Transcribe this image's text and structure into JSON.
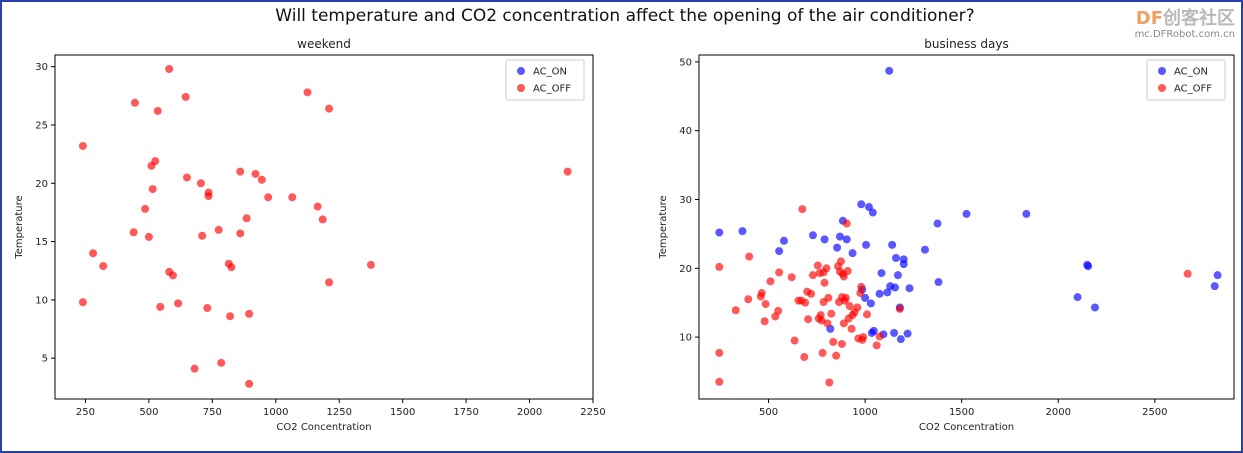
{
  "suptitle": "Will temperature and CO2 concentration affect the opening of the air conditioner?",
  "watermark": {
    "brand": "DF",
    "cn": "创客社区",
    "url": "mc.DFRobot.com.cn"
  },
  "colors": {
    "on": "#0000ff",
    "off": "#ff0000",
    "frame": "#2b3fa8"
  },
  "chart_data": [
    {
      "type": "scatter",
      "title": "weekend",
      "xlabel": "CO2 Concentration",
      "ylabel": "Temperature",
      "xlim": [
        130,
        2250
      ],
      "ylim": [
        1.5,
        31
      ],
      "xticks": [
        250,
        500,
        750,
        1000,
        1250,
        1500,
        1750,
        2000,
        2250
      ],
      "yticks": [
        5,
        10,
        15,
        20,
        25,
        30
      ],
      "legend": "top-right",
      "series": [
        {
          "name": "AC_ON",
          "color": "#0000ff",
          "points": []
        },
        {
          "name": "AC_OFF",
          "color": "#ff0000",
          "points": [
            [
              240,
              23.2
            ],
            [
              240,
              9.8
            ],
            [
              280,
              14.0
            ],
            [
              320,
              12.9
            ],
            [
              440,
              15.8
            ],
            [
              445,
              26.9
            ],
            [
              485,
              17.8
            ],
            [
              500,
              15.4
            ],
            [
              510,
              21.5
            ],
            [
              515,
              19.5
            ],
            [
              525,
              21.9
            ],
            [
              535,
              26.2
            ],
            [
              545,
              9.4
            ],
            [
              580,
              29.8
            ],
            [
              580,
              12.4
            ],
            [
              595,
              12.1
            ],
            [
              615,
              9.7
            ],
            [
              645,
              27.4
            ],
            [
              650,
              20.5
            ],
            [
              680,
              4.1
            ],
            [
              705,
              20.0
            ],
            [
              710,
              15.5
            ],
            [
              730,
              9.3
            ],
            [
              735,
              19.2
            ],
            [
              735,
              18.9
            ],
            [
              775,
              16.0
            ],
            [
              785,
              4.6
            ],
            [
              815,
              13.1
            ],
            [
              820,
              8.6
            ],
            [
              825,
              12.8
            ],
            [
              860,
              21.0
            ],
            [
              860,
              15.7
            ],
            [
              885,
              17.0
            ],
            [
              895,
              2.8
            ],
            [
              895,
              8.8
            ],
            [
              920,
              20.8
            ],
            [
              945,
              20.3
            ],
            [
              970,
              18.8
            ],
            [
              1065,
              18.8
            ],
            [
              1125,
              27.8
            ],
            [
              1165,
              18.0
            ],
            [
              1185,
              16.9
            ],
            [
              1210,
              26.4
            ],
            [
              1210,
              11.5
            ],
            [
              1375,
              13.0
            ],
            [
              2150,
              21.0
            ]
          ]
        }
      ]
    },
    {
      "type": "scatter",
      "title": "business days",
      "xlabel": "CO2 Concentration",
      "ylabel": "Temperature",
      "xlim": [
        140,
        2910
      ],
      "ylim": [
        1,
        51
      ],
      "xticks": [
        500,
        1000,
        1500,
        2000,
        2500
      ],
      "yticks": [
        10,
        20,
        30,
        40,
        50
      ],
      "legend": "top-right",
      "series": [
        {
          "name": "AC_ON",
          "color": "#0000ff",
          "points": [
            [
              245,
              25.2
            ],
            [
              365,
              25.4
            ],
            [
              555,
              22.5
            ],
            [
              580,
              24.0
            ],
            [
              730,
              24.8
            ],
            [
              790,
              24.2
            ],
            [
              820,
              11.2
            ],
            [
              855,
              23.0
            ],
            [
              870,
              24.6
            ],
            [
              885,
              26.9
            ],
            [
              905,
              24.2
            ],
            [
              935,
              22.2
            ],
            [
              980,
              29.3
            ],
            [
              985,
              16.9
            ],
            [
              1000,
              15.7
            ],
            [
              1005,
              23.4
            ],
            [
              1020,
              28.9
            ],
            [
              1030,
              14.9
            ],
            [
              1035,
              10.6
            ],
            [
              1040,
              28.1
            ],
            [
              1045,
              10.9
            ],
            [
              1075,
              16.3
            ],
            [
              1085,
              19.3
            ],
            [
              1095,
              10.4
            ],
            [
              1115,
              16.5
            ],
            [
              1125,
              48.7
            ],
            [
              1130,
              17.4
            ],
            [
              1140,
              23.4
            ],
            [
              1150,
              10.6
            ],
            [
              1155,
              17.2
            ],
            [
              1160,
              21.5
            ],
            [
              1170,
              19.0
            ],
            [
              1180,
              14.3
            ],
            [
              1185,
              9.7
            ],
            [
              1200,
              21.3
            ],
            [
              1200,
              20.6
            ],
            [
              1220,
              10.5
            ],
            [
              1230,
              17.1
            ],
            [
              1310,
              22.7
            ],
            [
              1375,
              26.5
            ],
            [
              1380,
              18.0
            ],
            [
              1525,
              27.9
            ],
            [
              1835,
              27.9
            ],
            [
              2100,
              15.8
            ],
            [
              2150,
              20.5
            ],
            [
              2155,
              20.3
            ],
            [
              2190,
              14.3
            ],
            [
              2810,
              17.4
            ],
            [
              2825,
              19.0
            ]
          ]
        },
        {
          "name": "AC_OFF",
          "color": "#ff0000",
          "points": [
            [
              245,
              20.2
            ],
            [
              245,
              7.7
            ],
            [
              245,
              3.5
            ],
            [
              330,
              13.9
            ],
            [
              395,
              15.5
            ],
            [
              400,
              21.7
            ],
            [
              460,
              15.9
            ],
            [
              465,
              16.4
            ],
            [
              480,
              12.3
            ],
            [
              485,
              14.8
            ],
            [
              510,
              18.1
            ],
            [
              535,
              13.0
            ],
            [
              550,
              13.8
            ],
            [
              555,
              19.4
            ],
            [
              620,
              18.7
            ],
            [
              635,
              9.5
            ],
            [
              655,
              15.3
            ],
            [
              670,
              15.3
            ],
            [
              675,
              28.6
            ],
            [
              685,
              7.1
            ],
            [
              690,
              15.0
            ],
            [
              700,
              16.6
            ],
            [
              705,
              12.6
            ],
            [
              720,
              16.3
            ],
            [
              730,
              19.0
            ],
            [
              755,
              20.4
            ],
            [
              760,
              12.7
            ],
            [
              765,
              19.3
            ],
            [
              770,
              13.2
            ],
            [
              775,
              12.4
            ],
            [
              780,
              7.7
            ],
            [
              785,
              19.4
            ],
            [
              785,
              15.1
            ],
            [
              790,
              17.9
            ],
            [
              800,
              20.0
            ],
            [
              805,
              12.0
            ],
            [
              810,
              15.7
            ],
            [
              815,
              3.4
            ],
            [
              825,
              13.4
            ],
            [
              835,
              9.3
            ],
            [
              850,
              7.3
            ],
            [
              860,
              20.3
            ],
            [
              865,
              15.1
            ],
            [
              870,
              19.5
            ],
            [
              875,
              21.0
            ],
            [
              880,
              15.8
            ],
            [
              880,
              9.0
            ],
            [
              885,
              19.2
            ],
            [
              890,
              18.8
            ],
            [
              890,
              12.0
            ],
            [
              895,
              15.3
            ],
            [
              900,
              15.7
            ],
            [
              905,
              26.5
            ],
            [
              910,
              19.6
            ],
            [
              915,
              12.7
            ],
            [
              920,
              14.5
            ],
            [
              930,
              11.2
            ],
            [
              935,
              13.2
            ],
            [
              945,
              13.6
            ],
            [
              960,
              14.3
            ],
            [
              965,
              9.8
            ],
            [
              975,
              16.4
            ],
            [
              980,
              17.3
            ],
            [
              985,
              9.6
            ],
            [
              990,
              10.0
            ],
            [
              1010,
              13.3
            ],
            [
              1060,
              8.8
            ],
            [
              1075,
              10.1
            ],
            [
              1180,
              14.1
            ],
            [
              2670,
              19.2
            ]
          ]
        }
      ]
    }
  ]
}
